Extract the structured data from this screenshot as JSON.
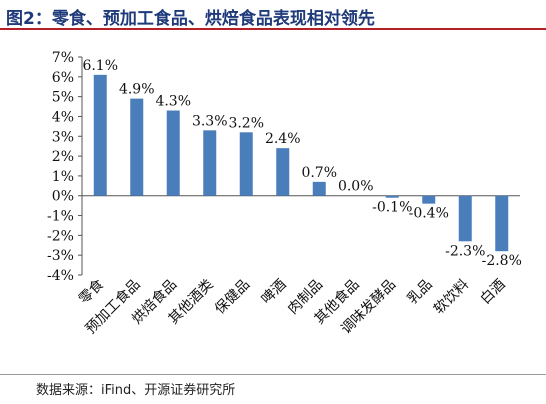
{
  "header": {
    "title": "图2：零食、预加工食品、烘焙食品表现相对领先"
  },
  "footer": {
    "source": "数据来源：iFind、开源证券研究所"
  },
  "colors": {
    "bar": "#4a7ebb",
    "title": "#1f3a7a",
    "rule": "#b32025"
  },
  "chart_data": {
    "type": "bar",
    "categories": [
      "零食",
      "预加工食品",
      "烘焙食品",
      "其他酒类",
      "保健品",
      "啤酒",
      "肉制品",
      "其他食品",
      "调味发酵品",
      "乳品",
      "软饮料",
      "白酒"
    ],
    "values": [
      6.1,
      4.9,
      4.3,
      3.3,
      3.2,
      2.4,
      0.7,
      0.0,
      -0.1,
      -0.4,
      -2.3,
      -2.8
    ],
    "data_labels": [
      "6.1%",
      "4.9%",
      "4.3%",
      "3.3%",
      "3.2%",
      "2.4%",
      "0.7%",
      "0.0%",
      "-0.1%",
      "-0.4%",
      "-2.3%",
      "-2.8%"
    ],
    "y_ticks": [
      "7%",
      "6%",
      "5%",
      "4%",
      "3%",
      "2%",
      "1%",
      "0%",
      "-1%",
      "-2%",
      "-3%",
      "-4%"
    ],
    "ylim": [
      -4,
      7
    ],
    "grid": false,
    "title": "",
    "xlabel": "",
    "ylabel": ""
  }
}
